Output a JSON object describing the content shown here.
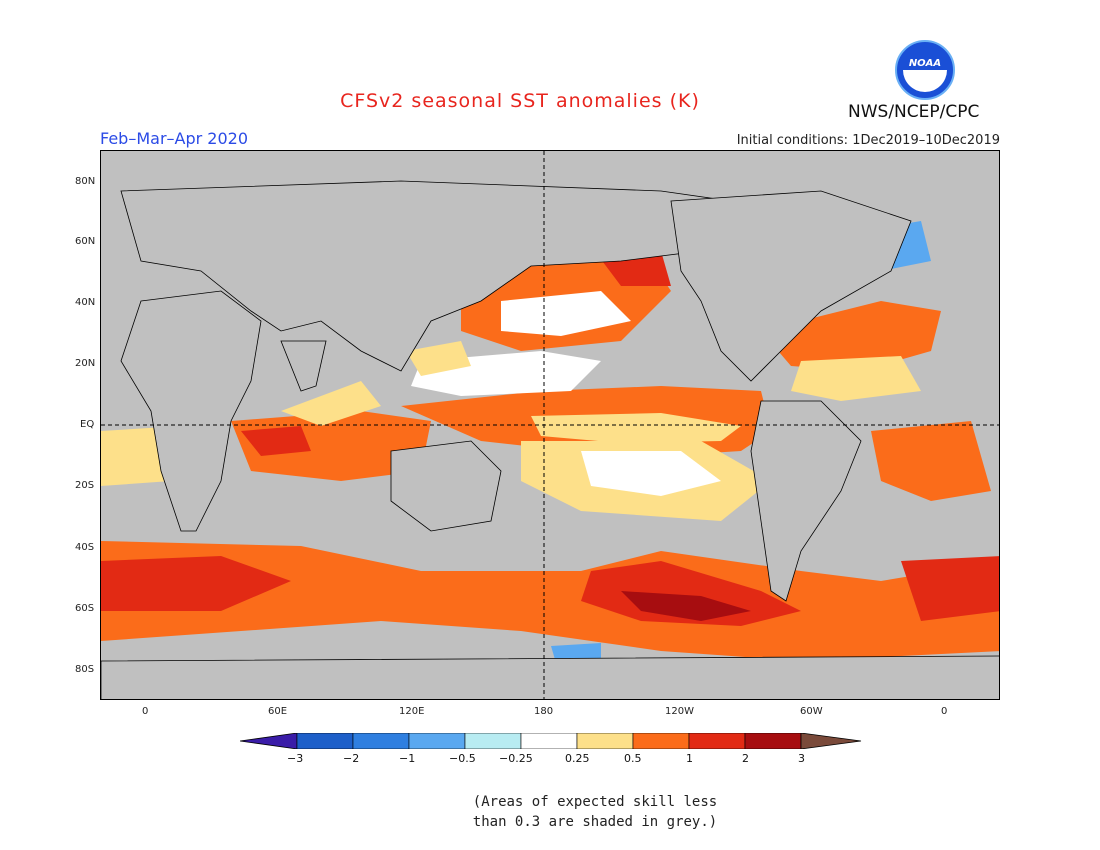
{
  "header": {
    "title": "CFSv2 seasonal SST anomalies (K)",
    "period": "Feb–Mar–Apr 2020",
    "initial_conditions": "Initial conditions: 1Dec2019–10Dec2019",
    "agency": "NWS/NCEP/CPC",
    "logo_text": "NOAA",
    "logo_icon": "noaa-logo-icon"
  },
  "map": {
    "lat_labels": [
      "80N",
      "60N",
      "40N",
      "20N",
      "EQ",
      "20S",
      "40S",
      "60S",
      "80S"
    ],
    "lon_labels": [
      "0",
      "60E",
      "120E",
      "180",
      "120W",
      "60W",
      "0"
    ],
    "land_color": "#c0c0c0",
    "grid_lines": "equator and 180 meridian dashed"
  },
  "colorbar": {
    "labels": [
      "−3",
      "−2",
      "−1",
      "−0.5",
      "−0.25",
      "0.25",
      "0.5",
      "1",
      "2",
      "3"
    ],
    "colors": [
      "#3a1ca8",
      "#1d5fc9",
      "#2f7fe0",
      "#5aa8f0",
      "#b8ecf2",
      "#ffffff",
      "#fde08a",
      "#fb6c1a",
      "#e22a14",
      "#a70d10",
      "#7a4a3a"
    ]
  },
  "footnote": {
    "line1": "(Areas of expected skill less",
    "line2": "than 0.3 are shaded in grey.)"
  }
}
